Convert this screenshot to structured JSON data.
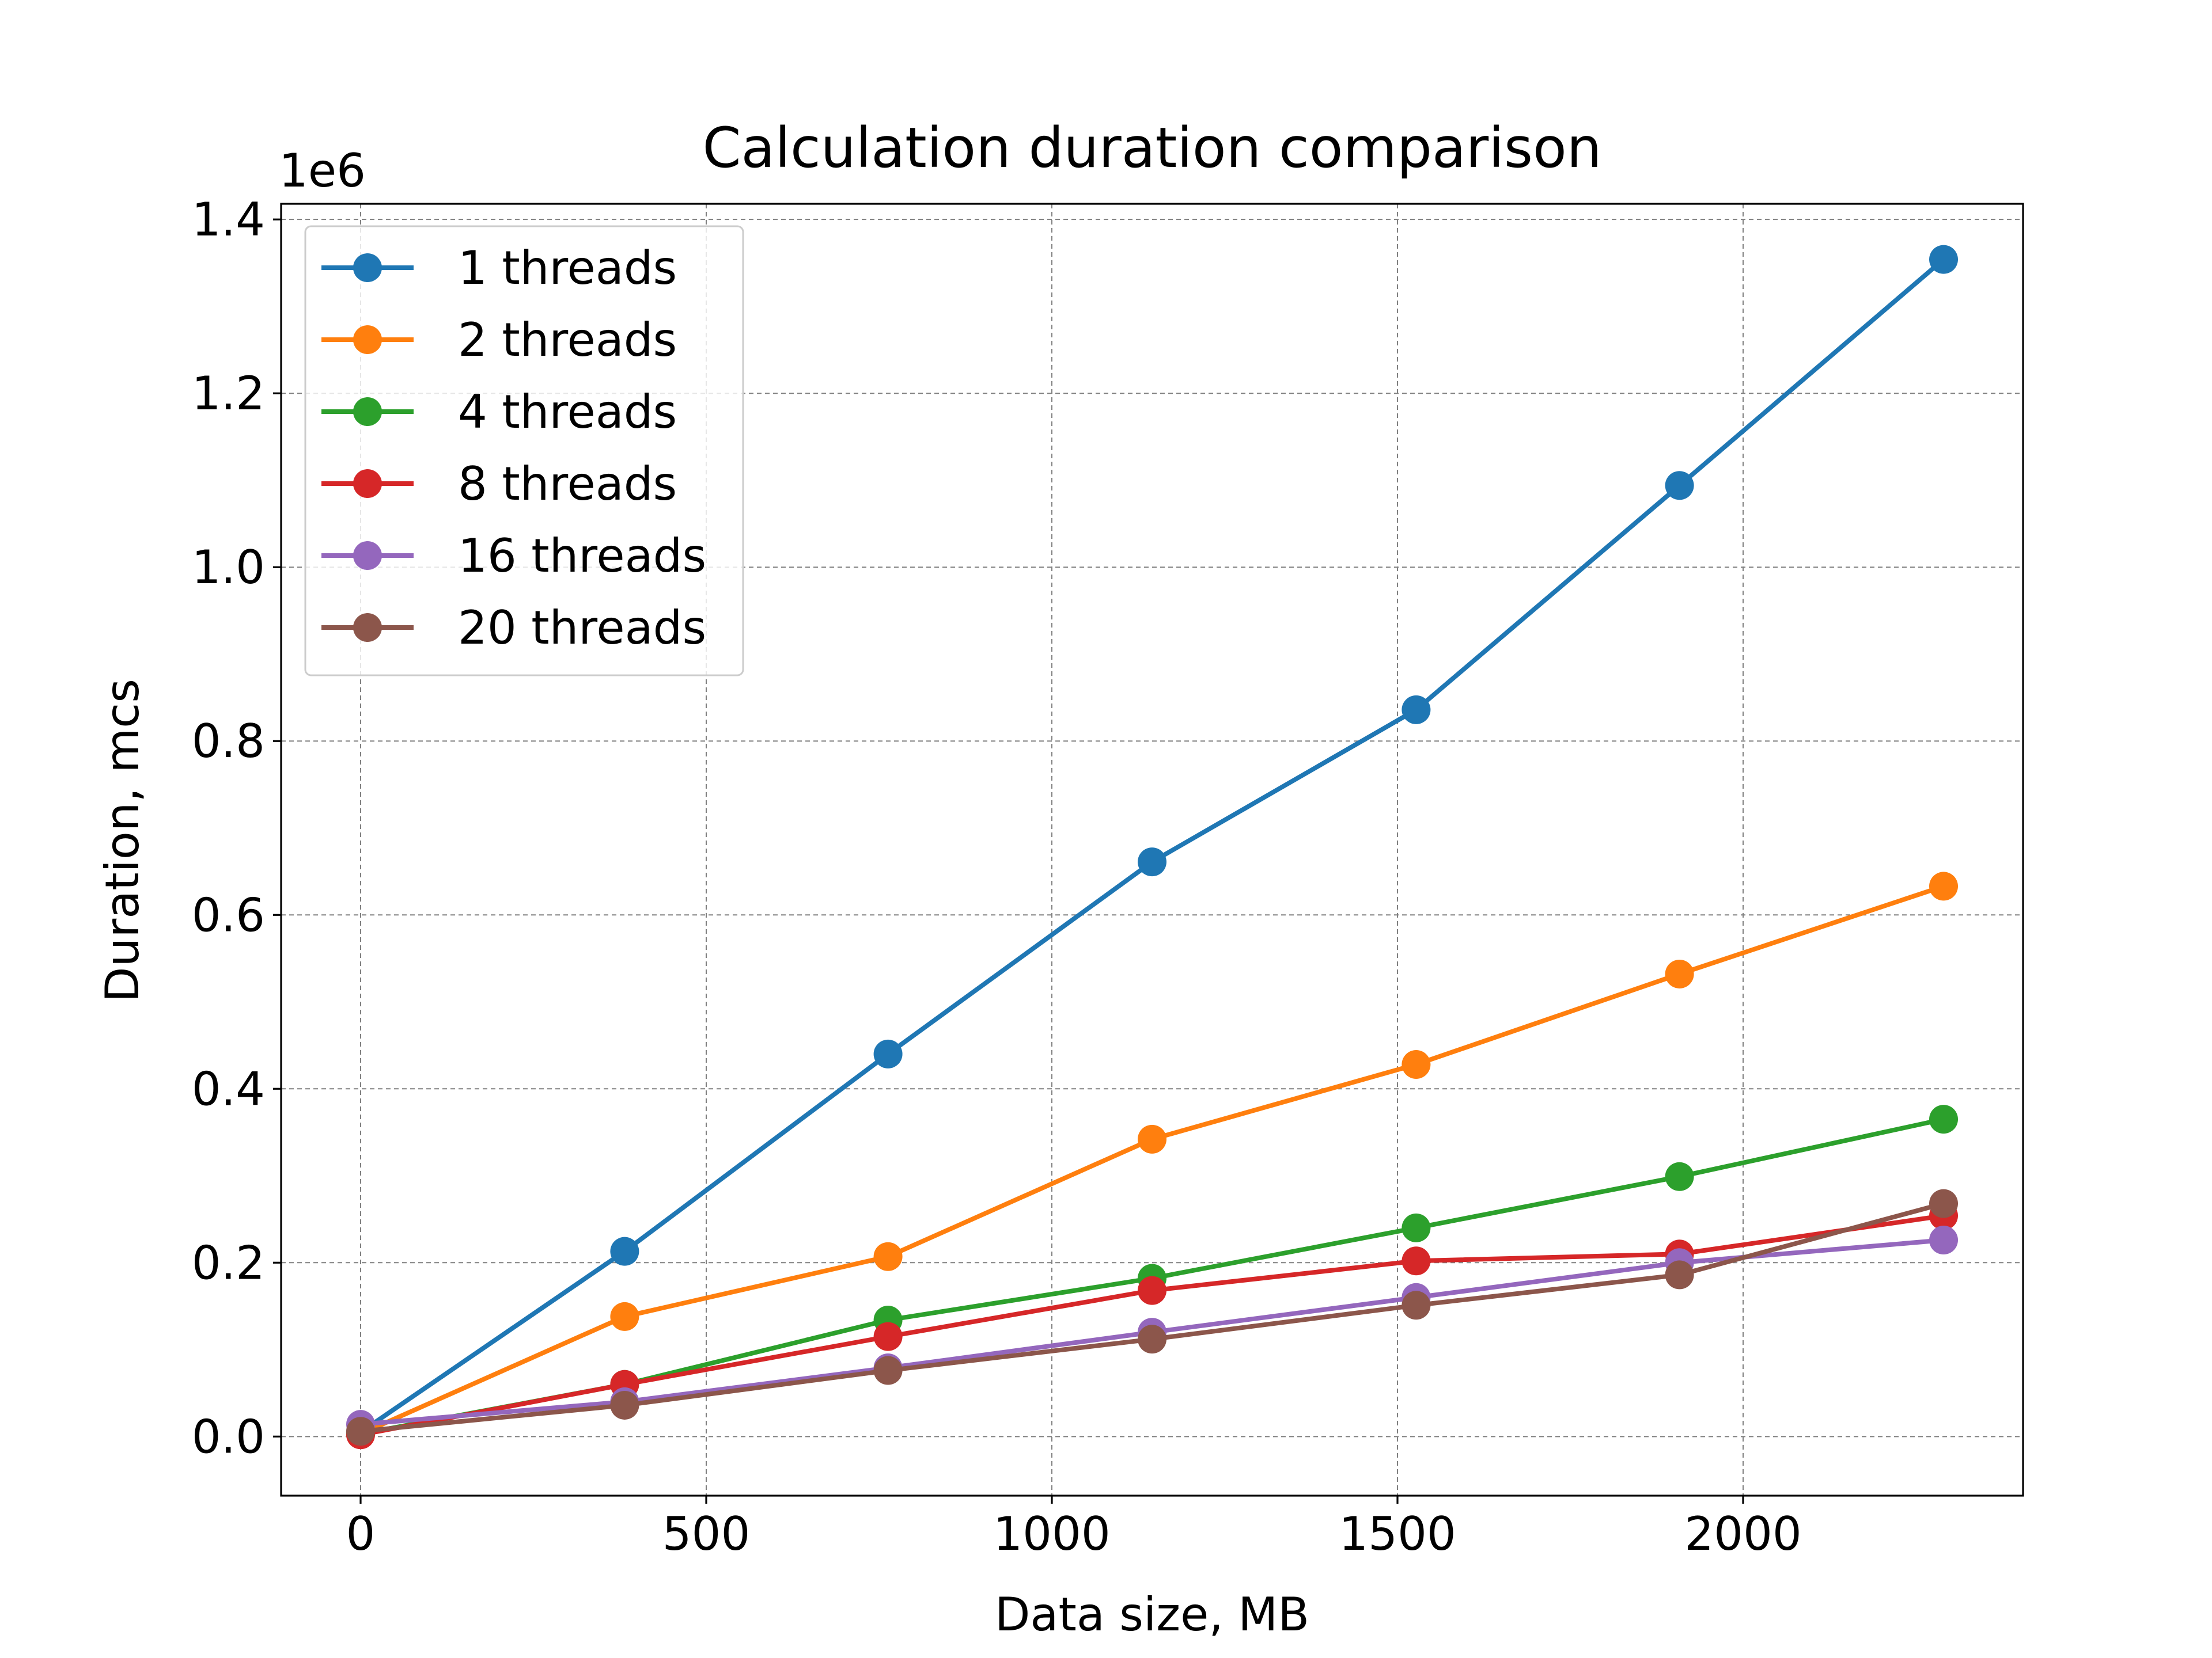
{
  "chart_data": {
    "type": "line",
    "title": "Calculation duration comparison",
    "xlabel": "Data size, MB",
    "ylabel": "Duration, mcs",
    "y_offset_label": "1e6",
    "xlim": [
      -115,
      2405
    ],
    "ylim": [
      -0.068,
      1.418
    ],
    "x_ticks": [
      0,
      500,
      1000,
      1500,
      2000
    ],
    "x_tick_labels": [
      "0",
      "500",
      "1000",
      "1500",
      "2000"
    ],
    "y_ticks": [
      0.0,
      0.2,
      0.4,
      0.6,
      0.8,
      1.0,
      1.2,
      1.4
    ],
    "y_tick_labels": [
      "0.0",
      "0.2",
      "0.4",
      "0.6",
      "0.8",
      "1.0",
      "1.2",
      "1.4"
    ],
    "grid": true,
    "legend_position": "top-left",
    "x": [
      0,
      382,
      763,
      1145,
      1527,
      1908,
      2290
    ],
    "series": [
      {
        "name": "1 threads",
        "color": "#1f77b4",
        "values": [
          0.005,
          0.213,
          0.44,
          0.661,
          0.836,
          1.094,
          1.354
        ]
      },
      {
        "name": "2 threads",
        "color": "#ff7f0e",
        "values": [
          0.003,
          0.138,
          0.207,
          0.342,
          0.428,
          0.532,
          0.633
        ]
      },
      {
        "name": "4 threads",
        "color": "#2ca02c",
        "values": [
          0.003,
          0.06,
          0.134,
          0.182,
          0.24,
          0.299,
          0.365
        ]
      },
      {
        "name": "8 threads",
        "color": "#d62728",
        "values": [
          0.002,
          0.06,
          0.115,
          0.168,
          0.202,
          0.21,
          0.254
        ]
      },
      {
        "name": "16 threads",
        "color": "#9467bd",
        "values": [
          0.014,
          0.04,
          0.079,
          0.12,
          0.16,
          0.2,
          0.226
        ]
      },
      {
        "name": "20 threads",
        "color": "#8c564b",
        "values": [
          0.006,
          0.036,
          0.076,
          0.112,
          0.151,
          0.186,
          0.268
        ]
      }
    ]
  }
}
